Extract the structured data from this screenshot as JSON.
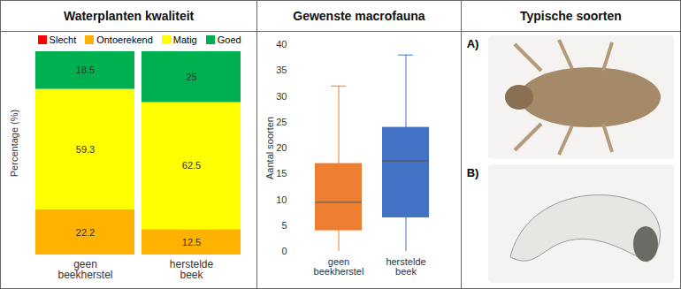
{
  "chart_data": [
    {
      "type": "bar",
      "title": "Waterplanten kwaliteit",
      "stacked": true,
      "categories": [
        "geen\nbeekherstel",
        "herstelde\nbeek"
      ],
      "ylabel": "Percentage (%)",
      "ylim": [
        0,
        100
      ],
      "tick_labels": "x",
      "data_labels": true,
      "legend": "top",
      "series": [
        {
          "name": "Slecht",
          "color": "#FF0000",
          "values": [
            0,
            0
          ]
        },
        {
          "name": "Ontoerekend",
          "color": "#FFB300",
          "values": [
            22.2,
            12.5
          ]
        },
        {
          "name": "Matig",
          "color": "#FFFF00",
          "values": [
            59.3,
            62.5
          ]
        },
        {
          "name": "Goed",
          "color": "#00B050",
          "values": [
            18.5,
            25
          ]
        }
      ]
    },
    {
      "type": "box",
      "title": "Gewenste macrofauna",
      "categories": [
        "geen\nbeekherstel",
        "herstelde\nbeek"
      ],
      "ylabel": "Aantal soorten",
      "ylim": [
        0,
        40
      ],
      "yticks": [
        0,
        5,
        10,
        15,
        20,
        25,
        30,
        35,
        40
      ],
      "min": [
        0,
        0
      ],
      "q1": [
        4,
        6.5
      ],
      "median": [
        9.5,
        17.5
      ],
      "q3": [
        17,
        24
      ],
      "max": [
        32,
        38
      ],
      "colors": [
        "#ED7D31",
        "#4472C4"
      ]
    }
  ],
  "photos": {
    "title": "Typische soorten",
    "labels": [
      "A)",
      "B)"
    ]
  }
}
